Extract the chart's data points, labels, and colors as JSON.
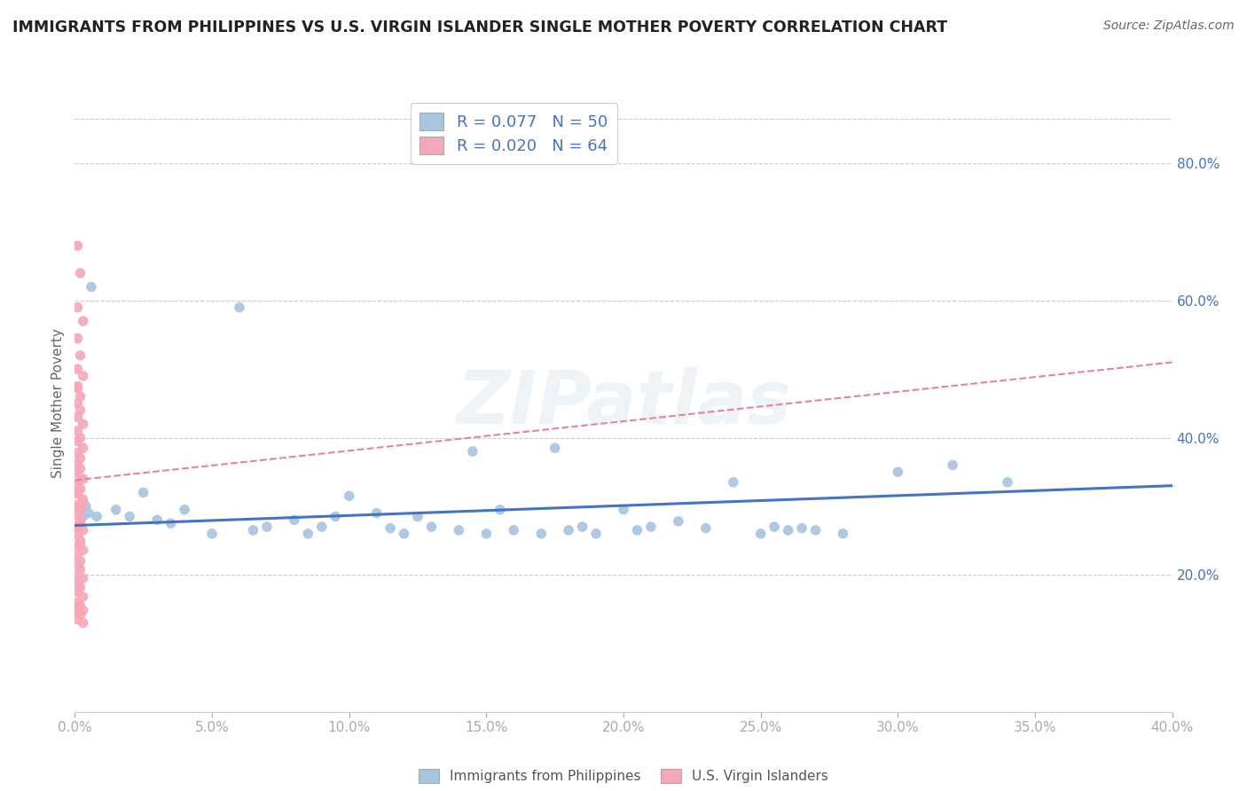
{
  "title": "IMMIGRANTS FROM PHILIPPINES VS U.S. VIRGIN ISLANDER SINGLE MOTHER POVERTY CORRELATION CHART",
  "source": "Source: ZipAtlas.com",
  "ylabel": "Single Mother Poverty",
  "xlim": [
    0.0,
    0.4
  ],
  "ylim": [
    0.0,
    0.9
  ],
  "yticks_right": [
    0.2,
    0.4,
    0.6,
    0.8
  ],
  "right_ytick_labels": [
    "20.0%",
    "40.0%",
    "60.0%",
    "80.0%"
  ],
  "xtick_vals": [
    0.0,
    0.05,
    0.1,
    0.15,
    0.2,
    0.25,
    0.3,
    0.35,
    0.4
  ],
  "xtick_labels": [
    "0.0%",
    "5.0%",
    "10.0%",
    "15.0%",
    "20.0%",
    "25.0%",
    "30.0%",
    "35.0%",
    "40.0%"
  ],
  "blue_R": 0.077,
  "blue_N": 50,
  "pink_R": 0.02,
  "pink_N": 64,
  "blue_color": "#a8c4e0",
  "pink_color": "#f4a8b8",
  "blue_line_color": "#4472c4",
  "pink_line_color": "#e8829a",
  "legend_label_blue": "Immigrants from Philippines",
  "legend_label_pink": "U.S. Virgin Islanders",
  "watermark": "ZIPatlas",
  "background_color": "#ffffff",
  "blue_scatter_x": [
    0.003,
    0.006,
    0.004,
    0.008,
    0.005,
    0.015,
    0.02,
    0.025,
    0.03,
    0.035,
    0.04,
    0.05,
    0.06,
    0.065,
    0.07,
    0.08,
    0.085,
    0.09,
    0.095,
    0.1,
    0.11,
    0.115,
    0.12,
    0.125,
    0.13,
    0.14,
    0.145,
    0.15,
    0.155,
    0.16,
    0.17,
    0.175,
    0.18,
    0.185,
    0.19,
    0.2,
    0.205,
    0.21,
    0.22,
    0.23,
    0.24,
    0.25,
    0.255,
    0.26,
    0.265,
    0.27,
    0.28,
    0.3,
    0.32,
    0.34
  ],
  "blue_scatter_y": [
    0.285,
    0.62,
    0.3,
    0.285,
    0.29,
    0.295,
    0.285,
    0.32,
    0.28,
    0.275,
    0.295,
    0.26,
    0.59,
    0.265,
    0.27,
    0.28,
    0.26,
    0.27,
    0.285,
    0.315,
    0.29,
    0.268,
    0.26,
    0.285,
    0.27,
    0.265,
    0.38,
    0.26,
    0.295,
    0.265,
    0.26,
    0.385,
    0.265,
    0.27,
    0.26,
    0.295,
    0.265,
    0.27,
    0.278,
    0.268,
    0.335,
    0.26,
    0.27,
    0.265,
    0.268,
    0.265,
    0.26,
    0.35,
    0.36,
    0.335
  ],
  "pink_scatter_x": [
    0.001,
    0.002,
    0.001,
    0.003,
    0.001,
    0.002,
    0.001,
    0.003,
    0.001,
    0.002,
    0.001,
    0.002,
    0.001,
    0.003,
    0.001,
    0.002,
    0.001,
    0.003,
    0.001,
    0.002,
    0.001,
    0.002,
    0.001,
    0.003,
    0.001,
    0.002,
    0.001,
    0.003,
    0.001,
    0.002,
    0.001,
    0.002,
    0.001,
    0.003,
    0.001,
    0.002,
    0.001,
    0.003,
    0.001,
    0.002,
    0.001,
    0.002,
    0.001,
    0.003,
    0.001,
    0.002,
    0.001,
    0.003,
    0.001,
    0.002,
    0.001,
    0.002,
    0.001,
    0.003,
    0.001,
    0.002,
    0.001,
    0.003,
    0.001,
    0.002,
    0.001,
    0.002,
    0.001,
    0.003
  ],
  "pink_scatter_y": [
    0.68,
    0.64,
    0.59,
    0.57,
    0.545,
    0.52,
    0.5,
    0.49,
    0.475,
    0.46,
    0.45,
    0.44,
    0.43,
    0.42,
    0.41,
    0.4,
    0.395,
    0.385,
    0.378,
    0.37,
    0.362,
    0.355,
    0.348,
    0.34,
    0.332,
    0.325,
    0.318,
    0.31,
    0.302,
    0.295,
    0.288,
    0.28,
    0.272,
    0.265,
    0.258,
    0.25,
    0.242,
    0.236,
    0.228,
    0.22,
    0.215,
    0.208,
    0.2,
    0.195,
    0.188,
    0.182,
    0.175,
    0.168,
    0.16,
    0.155,
    0.148,
    0.142,
    0.135,
    0.13,
    0.472,
    0.338,
    0.32,
    0.305,
    0.298,
    0.275,
    0.268,
    0.245,
    0.152,
    0.148
  ],
  "pink_line_x0": 0.0,
  "pink_line_x1": 0.4,
  "pink_line_y0": 0.338,
  "pink_line_y1": 0.51,
  "blue_line_x0": 0.0,
  "blue_line_x1": 0.4,
  "blue_line_y0": 0.272,
  "blue_line_y1": 0.33
}
